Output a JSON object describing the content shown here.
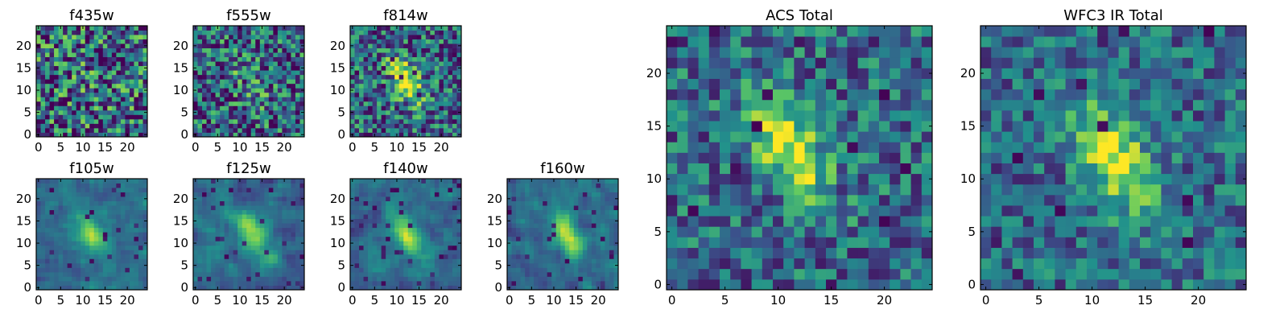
{
  "figure": {
    "description_colormap": "viridis",
    "colormap_stops": [
      "#440154",
      "#3b528b",
      "#21918c",
      "#5ec962",
      "#fde725"
    ]
  },
  "chart_data": [
    {
      "type": "heatmap",
      "title": "f435w",
      "grid_size": 25,
      "xticks": [
        0,
        5,
        10,
        15,
        20
      ],
      "yticks": [
        0,
        5,
        10,
        15,
        20
      ],
      "xlim": [
        0,
        24
      ],
      "ylim": [
        0,
        24
      ],
      "pattern": "noise",
      "peak": [
        12,
        12
      ],
      "peak_strength": 0.05,
      "noise": 0.6,
      "dark_fraction": 0.06,
      "seed": 11
    },
    {
      "type": "heatmap",
      "title": "f555w",
      "grid_size": 25,
      "xticks": [
        0,
        5,
        10,
        15,
        20
      ],
      "yticks": [
        0,
        5,
        10,
        15,
        20
      ],
      "xlim": [
        0,
        24
      ],
      "ylim": [
        0,
        24
      ],
      "pattern": "weak-source",
      "peak": [
        12,
        12
      ],
      "peak_strength": 0.18,
      "noise": 0.5,
      "dark_fraction": 0.05,
      "seed": 23
    },
    {
      "type": "heatmap",
      "title": "f814w",
      "grid_size": 25,
      "xticks": [
        0,
        5,
        10,
        15,
        20
      ],
      "yticks": [
        0,
        5,
        10,
        15,
        20
      ],
      "xlim": [
        0,
        24
      ],
      "ylim": [
        0,
        24
      ],
      "pattern": "source",
      "peak": [
        12,
        12
      ],
      "peak_strength": 0.5,
      "noise": 0.45,
      "dark_fraction": 0.08,
      "seed": 37
    },
    {
      "type": "heatmap",
      "title": "f105w",
      "grid_size": 25,
      "xticks": [
        0,
        5,
        10,
        15,
        20
      ],
      "yticks": [
        0,
        5,
        10,
        15,
        20
      ],
      "xlim": [
        0,
        24
      ],
      "ylim": [
        0,
        24
      ],
      "pattern": "smooth-source",
      "peak": [
        12,
        12
      ],
      "peak_strength": 0.35,
      "noise": 0.35,
      "dark_fraction": 0.03,
      "seed": 41
    },
    {
      "type": "heatmap",
      "title": "f125w",
      "grid_size": 25,
      "xticks": [
        0,
        5,
        10,
        15,
        20
      ],
      "yticks": [
        0,
        5,
        10,
        15,
        20
      ],
      "xlim": [
        0,
        24
      ],
      "ylim": [
        0,
        24
      ],
      "pattern": "smooth-source",
      "peak": [
        13,
        12
      ],
      "peak_strength": 0.35,
      "noise": 0.4,
      "dark_fraction": 0.05,
      "seed": 53
    },
    {
      "type": "heatmap",
      "title": "f140w",
      "grid_size": 25,
      "xticks": [
        0,
        5,
        10,
        15,
        20
      ],
      "yticks": [
        0,
        5,
        10,
        15,
        20
      ],
      "xlim": [
        0,
        24
      ],
      "ylim": [
        0,
        24
      ],
      "pattern": "smooth-source",
      "peak": [
        12,
        12
      ],
      "peak_strength": 0.35,
      "noise": 0.4,
      "dark_fraction": 0.04,
      "seed": 67
    },
    {
      "type": "heatmap",
      "title": "f160w",
      "grid_size": 25,
      "xticks": [
        0,
        5,
        10,
        15,
        20
      ],
      "yticks": [
        0,
        5,
        10,
        15,
        20
      ],
      "xlim": [
        0,
        24
      ],
      "ylim": [
        0,
        24
      ],
      "pattern": "smooth-source",
      "peak": [
        13,
        12
      ],
      "peak_strength": 0.4,
      "noise": 0.4,
      "dark_fraction": 0.05,
      "seed": 79
    },
    {
      "type": "heatmap",
      "title": "ACS Total",
      "grid_size": 25,
      "xticks": [
        0,
        5,
        10,
        15,
        20
      ],
      "yticks": [
        0,
        5,
        10,
        15,
        20
      ],
      "xlim": [
        0,
        24
      ],
      "ylim": [
        0,
        24
      ],
      "pattern": "source",
      "peak": [
        11,
        13
      ],
      "peak_strength": 0.45,
      "noise": 0.35,
      "dark_fraction": 0.04,
      "seed": 91
    },
    {
      "type": "heatmap",
      "title": "WFC3 IR Total",
      "grid_size": 25,
      "xticks": [
        0,
        5,
        10,
        15,
        20
      ],
      "yticks": [
        0,
        5,
        10,
        15,
        20
      ],
      "xlim": [
        0,
        24
      ],
      "ylim": [
        0,
        24
      ],
      "pattern": "source",
      "peak": [
        12,
        12
      ],
      "peak_strength": 0.45,
      "noise": 0.3,
      "dark_fraction": 0.04,
      "seed": 103
    }
  ]
}
